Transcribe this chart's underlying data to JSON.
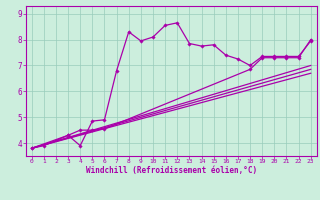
{
  "bg_color": "#cceedd",
  "line_color": "#aa00aa",
  "grid_color": "#99ccbb",
  "xlim": [
    -0.5,
    23.5
  ],
  "ylim": [
    3.5,
    9.3
  ],
  "xticks": [
    0,
    1,
    2,
    3,
    4,
    5,
    6,
    7,
    8,
    9,
    10,
    11,
    12,
    13,
    14,
    15,
    16,
    17,
    18,
    19,
    20,
    21,
    22,
    23
  ],
  "yticks": [
    4,
    5,
    6,
    7,
    8,
    9
  ],
  "xlabel": "Windchill (Refroidissement éolien,°C)",
  "line1_x": [
    0,
    1,
    3,
    4,
    5,
    6,
    7,
    8,
    9,
    10,
    11,
    12,
    13,
    14,
    15,
    16,
    17,
    18,
    19,
    20,
    21,
    22,
    23
  ],
  "line1_y": [
    3.8,
    3.9,
    4.3,
    3.9,
    4.85,
    4.9,
    6.8,
    8.3,
    7.95,
    8.1,
    8.55,
    8.65,
    7.85,
    7.75,
    7.8,
    7.4,
    7.25,
    7.0,
    7.35,
    7.35,
    7.35,
    7.35,
    7.95
  ],
  "line2_x": [
    0,
    3,
    4,
    5,
    6,
    18,
    19,
    20,
    21,
    22,
    23
  ],
  "line2_y": [
    3.8,
    4.3,
    4.5,
    4.5,
    4.55,
    6.85,
    7.3,
    7.3,
    7.3,
    7.3,
    8.0
  ],
  "line3_x": [
    0,
    23
  ],
  "line3_y": [
    3.8,
    7.0
  ],
  "line4_x": [
    0,
    23
  ],
  "line4_y": [
    3.8,
    6.85
  ],
  "line5_x": [
    0,
    23
  ],
  "line5_y": [
    3.8,
    6.7
  ]
}
